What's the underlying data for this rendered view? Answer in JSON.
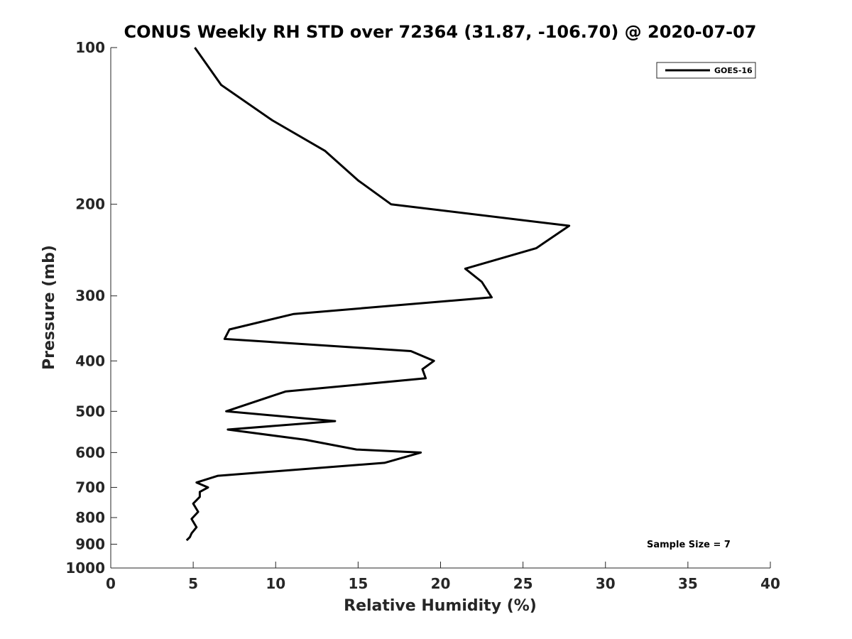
{
  "chart_data": {
    "type": "line",
    "title": "CONUS Weekly RH STD over 72364 (31.87, -106.70) @ 2020-07-07",
    "xlabel": "Relative Humidity (%)",
    "ylabel": "Pressure (mb)",
    "xlim": [
      0,
      40
    ],
    "ylim": [
      100,
      1000
    ],
    "y_scale": "log",
    "y_reversed": true,
    "grid": false,
    "legend_position": "top-right",
    "x_ticks": [
      0,
      5,
      10,
      15,
      20,
      25,
      30,
      35,
      40
    ],
    "y_ticks": [
      100,
      200,
      300,
      400,
      500,
      600,
      700,
      800,
      900,
      1000
    ],
    "series": [
      {
        "name": "GOES-16",
        "color": "#000000",
        "x": [
          5.1,
          6.7,
          9.8,
          13.0,
          15.0,
          17.0,
          27.8,
          25.8,
          21.5,
          22.5,
          23.1,
          11.1,
          7.2,
          6.9,
          18.2,
          19.6,
          18.9,
          19.1,
          10.6,
          7.0,
          13.6,
          7.1,
          11.8,
          14.9,
          18.8,
          16.6,
          6.5,
          5.2,
          5.9,
          5.4,
          5.4,
          5.0,
          5.3,
          4.9,
          5.2,
          4.9,
          4.8,
          4.6
        ],
        "y": [
          100,
          118,
          138,
          158,
          180,
          200,
          220,
          243,
          266,
          282,
          302,
          325,
          348,
          363,
          383,
          400,
          415,
          432,
          458,
          500,
          522,
          542,
          567,
          592,
          600,
          628,
          665,
          685,
          700,
          714,
          730,
          752,
          780,
          805,
          835,
          858,
          872,
          885
        ]
      }
    ],
    "annotations": [
      {
        "text": "Sample Size = 7"
      }
    ]
  }
}
